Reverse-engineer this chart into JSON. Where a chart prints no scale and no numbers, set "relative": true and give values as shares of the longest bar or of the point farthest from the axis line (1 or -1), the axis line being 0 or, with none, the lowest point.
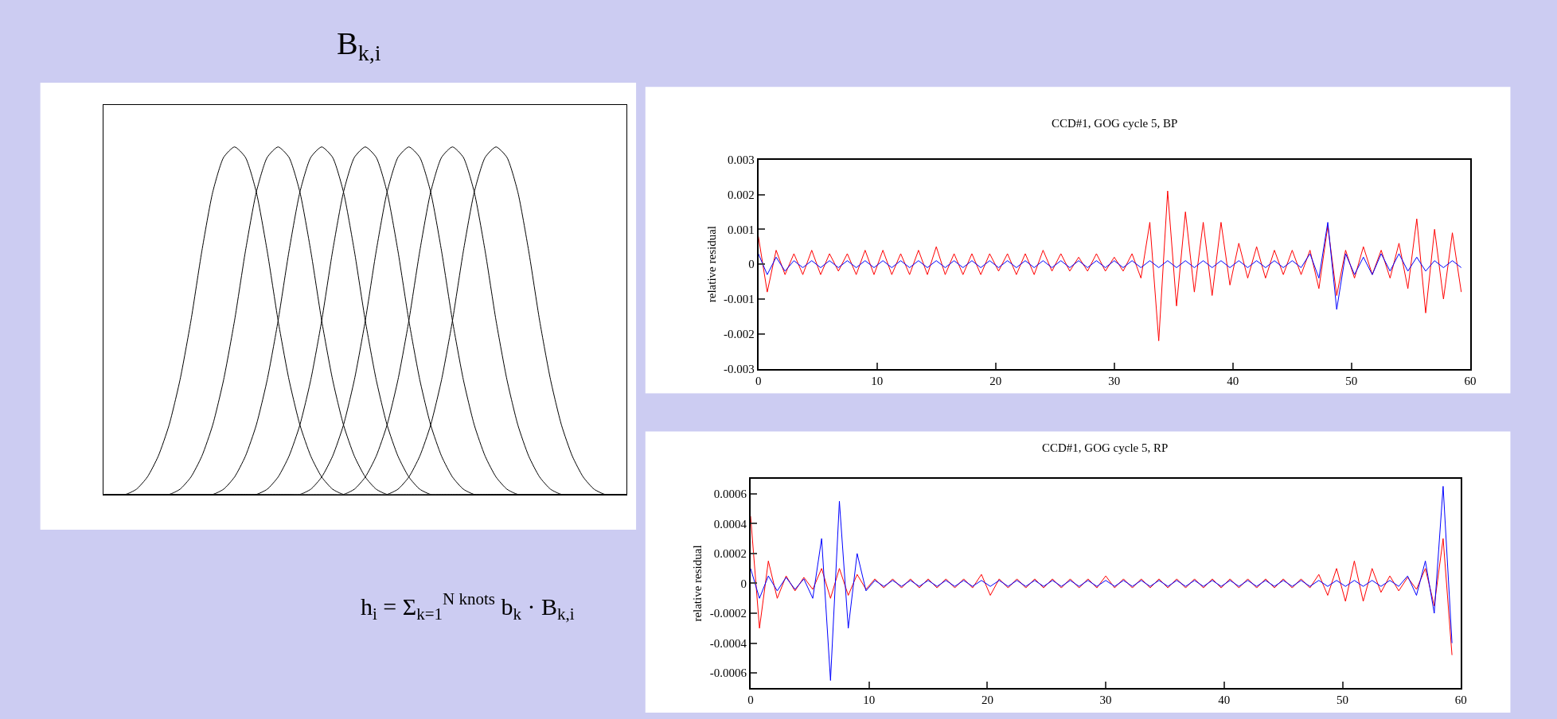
{
  "chart_data": [
    {
      "type": "line",
      "title": "B$_{k,i}$",
      "annotations": [
        "h$_{i}$ = Σ$_{k=1}$$^{N knots}$ b$_{k}$ · B$_{k,i}$"
      ],
      "relative": true,
      "categories": [
        null,
        null,
        null,
        null,
        null,
        null,
        null,
        null,
        null,
        null,
        null,
        null,
        null,
        null,
        null,
        null,
        null,
        null,
        null,
        null,
        null,
        null,
        null,
        null,
        null,
        null,
        null,
        null,
        null,
        null,
        null,
        null,
        null,
        null,
        null,
        null,
        null,
        null,
        null,
        null,
        null,
        null,
        null,
        null,
        null,
        null,
        null,
        null,
        null
      ],
      "series": [
        {
          "color": "#000000",
          "values": [
            0,
            0,
            0,
            0.015,
            0.05,
            0.11,
            0.2,
            0.33,
            0.5,
            0.7,
            0.87,
            0.97,
            1,
            0.97,
            0.87,
            0.7,
            0.5,
            0.33,
            0.2,
            0.11,
            0.05,
            0.015,
            0,
            0,
            0,
            0,
            0,
            0,
            0,
            0,
            0,
            0,
            0,
            0,
            0,
            0,
            0,
            0,
            0,
            0,
            0,
            0,
            0,
            0,
            0,
            0,
            0,
            0,
            0
          ]
        },
        {
          "color": "#000000",
          "values": [
            0,
            0,
            0,
            0,
            0,
            0,
            0,
            0.015,
            0.05,
            0.11,
            0.2,
            0.33,
            0.5,
            0.7,
            0.87,
            0.97,
            1,
            0.97,
            0.87,
            0.7,
            0.5,
            0.33,
            0.2,
            0.11,
            0.05,
            0.015,
            0,
            0,
            0,
            0,
            0,
            0,
            0,
            0,
            0,
            0,
            0,
            0,
            0,
            0,
            0,
            0,
            0,
            0,
            0,
            0,
            0,
            0,
            0
          ]
        },
        {
          "color": "#000000",
          "values": [
            0,
            0,
            0,
            0,
            0,
            0,
            0,
            0,
            0,
            0,
            0,
            0.015,
            0.05,
            0.11,
            0.2,
            0.33,
            0.5,
            0.7,
            0.87,
            0.97,
            1,
            0.97,
            0.87,
            0.7,
            0.5,
            0.33,
            0.2,
            0.11,
            0.05,
            0.015,
            0,
            0,
            0,
            0,
            0,
            0,
            0,
            0,
            0,
            0,
            0,
            0,
            0,
            0,
            0,
            0,
            0,
            0,
            0
          ]
        },
        {
          "color": "#000000",
          "values": [
            0,
            0,
            0,
            0,
            0,
            0,
            0,
            0,
            0,
            0,
            0,
            0,
            0,
            0,
            0,
            0.015,
            0.05,
            0.11,
            0.2,
            0.33,
            0.5,
            0.7,
            0.87,
            0.97,
            1,
            0.97,
            0.87,
            0.7,
            0.5,
            0.33,
            0.2,
            0.11,
            0.05,
            0.015,
            0,
            0,
            0,
            0,
            0,
            0,
            0,
            0,
            0,
            0,
            0,
            0,
            0,
            0,
            0
          ]
        },
        {
          "color": "#000000",
          "values": [
            0,
            0,
            0,
            0,
            0,
            0,
            0,
            0,
            0,
            0,
            0,
            0,
            0,
            0,
            0,
            0,
            0,
            0,
            0,
            0.015,
            0.05,
            0.11,
            0.2,
            0.33,
            0.5,
            0.7,
            0.87,
            0.97,
            1,
            0.97,
            0.87,
            0.7,
            0.5,
            0.33,
            0.2,
            0.11,
            0.05,
            0.015,
            0,
            0,
            0,
            0,
            0,
            0,
            0,
            0,
            0,
            0,
            0
          ]
        },
        {
          "color": "#000000",
          "values": [
            0,
            0,
            0,
            0,
            0,
            0,
            0,
            0,
            0,
            0,
            0,
            0,
            0,
            0,
            0,
            0,
            0,
            0,
            0,
            0,
            0,
            0,
            0,
            0.015,
            0.05,
            0.11,
            0.2,
            0.33,
            0.5,
            0.7,
            0.87,
            0.97,
            1,
            0.97,
            0.87,
            0.7,
            0.5,
            0.33,
            0.2,
            0.11,
            0.05,
            0.015,
            0,
            0,
            0,
            0,
            0,
            0,
            0
          ]
        },
        {
          "color": "#000000",
          "values": [
            0,
            0,
            0,
            0,
            0,
            0,
            0,
            0,
            0,
            0,
            0,
            0,
            0,
            0,
            0,
            0,
            0,
            0,
            0,
            0,
            0,
            0,
            0,
            0,
            0,
            0,
            0,
            0.015,
            0.05,
            0.11,
            0.2,
            0.33,
            0.5,
            0.7,
            0.87,
            0.97,
            1,
            0.97,
            0.87,
            0.7,
            0.5,
            0.33,
            0.2,
            0.11,
            0.05,
            0.015,
            0,
            0,
            0
          ]
        }
      ]
    },
    {
      "type": "line",
      "title": "CCD#1, GOG cycle 5, BP",
      "ylabel": "relative residual",
      "xlim": [
        0,
        60
      ],
      "xticks": [
        0,
        10,
        20,
        30,
        40,
        50,
        60
      ],
      "ylim": [
        -0.003,
        0.003
      ],
      "yticks": [
        -0.003,
        -0.002,
        -0.001,
        0,
        0.001,
        0.002,
        0.003
      ],
      "x": [
        0,
        0.75,
        1.5,
        2.25,
        3,
        3.75,
        4.5,
        5.25,
        6,
        6.75,
        7.5,
        8.25,
        9,
        9.75,
        10.5,
        11.25,
        12,
        12.75,
        13.5,
        14.25,
        15,
        15.75,
        16.5,
        17.25,
        18,
        18.75,
        19.5,
        20.25,
        21,
        21.75,
        22.5,
        23.25,
        24,
        24.75,
        25.5,
        26.25,
        27,
        27.75,
        28.5,
        29.25,
        30,
        30.75,
        31.5,
        32.25,
        33,
        33.75,
        34.5,
        35.25,
        36,
        36.75,
        37.5,
        38.25,
        39,
        39.75,
        40.5,
        41.25,
        42,
        42.75,
        43.5,
        44.25,
        45,
        45.75,
        46.5,
        47.25,
        48,
        48.75,
        49.5,
        50.25,
        51,
        51.75,
        52.5,
        53.25,
        54,
        54.75,
        55.5,
        56.25,
        57,
        57.75,
        58.5,
        59.25
      ],
      "series": [
        {
          "color": "#ff0000",
          "values": [
            0.0008,
            -0.0008,
            0.0004,
            -0.0003,
            0.0003,
            -0.0003,
            0.0004,
            -0.0003,
            0.0003,
            -0.0002,
            0.0003,
            -0.0003,
            0.0004,
            -0.0003,
            0.0004,
            -0.0003,
            0.0003,
            -0.0003,
            0.0004,
            -0.0003,
            0.0005,
            -0.0003,
            0.0003,
            -0.0003,
            0.0003,
            -0.0003,
            0.0003,
            -0.0002,
            0.0003,
            -0.0003,
            0.0003,
            -0.0003,
            0.0004,
            -0.0002,
            0.0003,
            -0.0002,
            0.0002,
            -0.0002,
            0.0003,
            -0.0002,
            0.0002,
            -0.0002,
            0.0003,
            -0.0004,
            0.0012,
            -0.0022,
            0.0021,
            -0.0012,
            0.0015,
            -0.0008,
            0.0012,
            -0.0009,
            0.0012,
            -0.0006,
            0.0006,
            -0.0004,
            0.0005,
            -0.0004,
            0.0004,
            -0.0003,
            0.0004,
            -0.0003,
            0.0004,
            -0.0007,
            0.0011,
            -0.0009,
            0.0004,
            -0.0004,
            0.0005,
            -0.0003,
            0.0004,
            -0.0004,
            0.0006,
            -0.0007,
            0.0013,
            -0.0014,
            0.001,
            -0.001,
            0.0009,
            -0.0008
          ]
        },
        {
          "color": "#0000ff",
          "values": [
            0.0003,
            -0.0003,
            0.0002,
            -0.0002,
            0.0001,
            -0.0001,
            0.0001,
            -0.0001,
            0.0001,
            -0.0001,
            0.0001,
            -0.0001,
            0.0001,
            -0.0001,
            0.0001,
            -0.0001,
            0.0001,
            -0.0001,
            0.0001,
            -0.0001,
            0.0001,
            -0.0001,
            0.0001,
            -0.0001,
            0.0001,
            -0.0001,
            0.0001,
            -0.0001,
            0.0001,
            -0.0001,
            0.0001,
            -0.0001,
            0.0001,
            -0.0001,
            0.0001,
            -0.0001,
            0.0001,
            -0.0001,
            0.0001,
            -0.0001,
            0.0001,
            -0.0001,
            0.0001,
            -0.0001,
            0.0001,
            -0.0001,
            0.0001,
            -0.0001,
            0.0001,
            -0.0001,
            0.0001,
            -0.0001,
            0.0001,
            -0.0001,
            0.0001,
            -0.0001,
            0.0001,
            -0.0001,
            0.0001,
            -0.0001,
            0.0001,
            -0.0001,
            0.0003,
            -0.0004,
            0.0012,
            -0.0013,
            0.0003,
            -0.0003,
            0.0002,
            -0.0003,
            0.0003,
            -0.0002,
            0.0003,
            -0.0002,
            0.0002,
            -0.0002,
            0.0001,
            -0.0001,
            0.0001,
            -0.0001
          ]
        }
      ]
    },
    {
      "type": "line",
      "title": "CCD#1, GOG cycle 5, RP",
      "ylabel": "relative residual",
      "xlim": [
        0,
        60
      ],
      "xticks": [
        0,
        10,
        20,
        30,
        40,
        50,
        60
      ],
      "ylim": [
        -0.0007,
        0.0007
      ],
      "yticks": [
        -0.0006,
        -0.0004,
        -0.0002,
        0,
        0.0002,
        0.0004,
        0.0006
      ],
      "x": [
        0,
        0.75,
        1.5,
        2.25,
        3,
        3.75,
        4.5,
        5.25,
        6,
        6.75,
        7.5,
        8.25,
        9,
        9.75,
        10.5,
        11.25,
        12,
        12.75,
        13.5,
        14.25,
        15,
        15.75,
        16.5,
        17.25,
        18,
        18.75,
        19.5,
        20.25,
        21,
        21.75,
        22.5,
        23.25,
        24,
        24.75,
        25.5,
        26.25,
        27,
        27.75,
        28.5,
        29.25,
        30,
        30.75,
        31.5,
        32.25,
        33,
        33.75,
        34.5,
        35.25,
        36,
        36.75,
        37.5,
        38.25,
        39,
        39.75,
        40.5,
        41.25,
        42,
        42.75,
        43.5,
        44.25,
        45,
        45.75,
        46.5,
        47.25,
        48,
        48.75,
        49.5,
        50.25,
        51,
        51.75,
        52.5,
        53.25,
        54,
        54.75,
        55.5,
        56.25,
        57,
        57.75,
        58.5,
        59.25
      ],
      "series": [
        {
          "color": "#ff0000",
          "values": [
            0.00045,
            -0.0003,
            0.00015,
            -0.0001,
            5e-05,
            -5e-05,
            4e-05,
            -4e-05,
            0.0001,
            -0.0001,
            0.0001,
            -8e-05,
            6e-05,
            -4e-05,
            3e-05,
            -3e-05,
            3e-05,
            -3e-05,
            3e-05,
            -3e-05,
            3e-05,
            -3e-05,
            3e-05,
            -3e-05,
            3e-05,
            -3e-05,
            6e-05,
            -8e-05,
            3e-05,
            -3e-05,
            3e-05,
            -3e-05,
            3e-05,
            -3e-05,
            3e-05,
            -3e-05,
            3e-05,
            -3e-05,
            3e-05,
            -3e-05,
            5e-05,
            -3e-05,
            3e-05,
            -3e-05,
            3e-05,
            -3e-05,
            3e-05,
            -3e-05,
            3e-05,
            -3e-05,
            3e-05,
            -3e-05,
            3e-05,
            -3e-05,
            3e-05,
            -3e-05,
            3e-05,
            -3e-05,
            3e-05,
            -3e-05,
            3e-05,
            -3e-05,
            3e-05,
            -3e-05,
            6e-05,
            -8e-05,
            0.0001,
            -0.00012,
            0.00015,
            -0.00012,
            0.0001,
            -6e-05,
            5e-05,
            -5e-05,
            4e-05,
            -4e-05,
            0.0001,
            -0.00015,
            0.0003,
            -0.00048
          ]
        },
        {
          "color": "#0000ff",
          "values": [
            0.0001,
            -0.0001,
            5e-05,
            -5e-05,
            4e-05,
            -4e-05,
            3e-05,
            -0.0001,
            0.0003,
            -0.00065,
            0.00055,
            -0.0003,
            0.0002,
            -5e-05,
            2e-05,
            -2e-05,
            2e-05,
            -2e-05,
            2e-05,
            -2e-05,
            2e-05,
            -2e-05,
            2e-05,
            -2e-05,
            2e-05,
            -2e-05,
            2e-05,
            -2e-05,
            2e-05,
            -2e-05,
            2e-05,
            -2e-05,
            2e-05,
            -2e-05,
            2e-05,
            -2e-05,
            2e-05,
            -2e-05,
            2e-05,
            -2e-05,
            2e-05,
            -2e-05,
            2e-05,
            -2e-05,
            2e-05,
            -2e-05,
            2e-05,
            -2e-05,
            2e-05,
            -2e-05,
            2e-05,
            -2e-05,
            2e-05,
            -2e-05,
            2e-05,
            -2e-05,
            2e-05,
            -2e-05,
            2e-05,
            -2e-05,
            2e-05,
            -2e-05,
            2e-05,
            -2e-05,
            2e-05,
            -2e-05,
            2e-05,
            -2e-05,
            2e-05,
            -2e-05,
            2e-05,
            -2e-05,
            2e-05,
            -2e-05,
            5e-05,
            -8e-05,
            0.00015,
            -0.0002,
            0.00065,
            -0.0004
          ]
        }
      ]
    }
  ]
}
